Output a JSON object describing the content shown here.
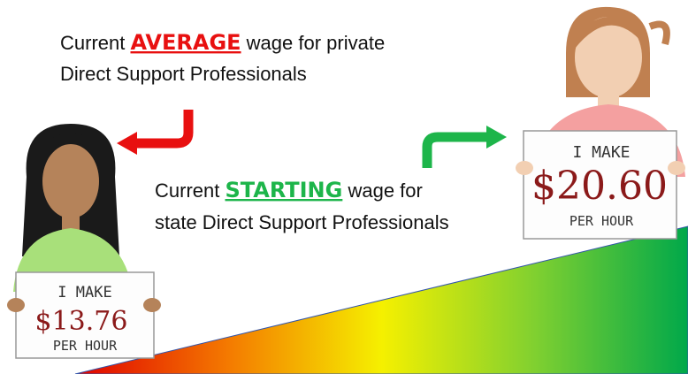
{
  "callouts": [
    {
      "lead": "Current",
      "highlight": "AVERAGE",
      "rest": "wage for private",
      "line2": "Direct Support Professionals"
    },
    {
      "lead": "Current",
      "highlight": "STARTING",
      "rest": "wage for",
      "line2": "state Direct Support Professionals"
    }
  ],
  "signs": [
    {
      "line1": "I MAKE",
      "amount": "$13.76",
      "line3": "PER HOUR"
    },
    {
      "line1": "I MAKE",
      "amount": "$20.60",
      "line3": "PER HOUR"
    }
  ]
}
